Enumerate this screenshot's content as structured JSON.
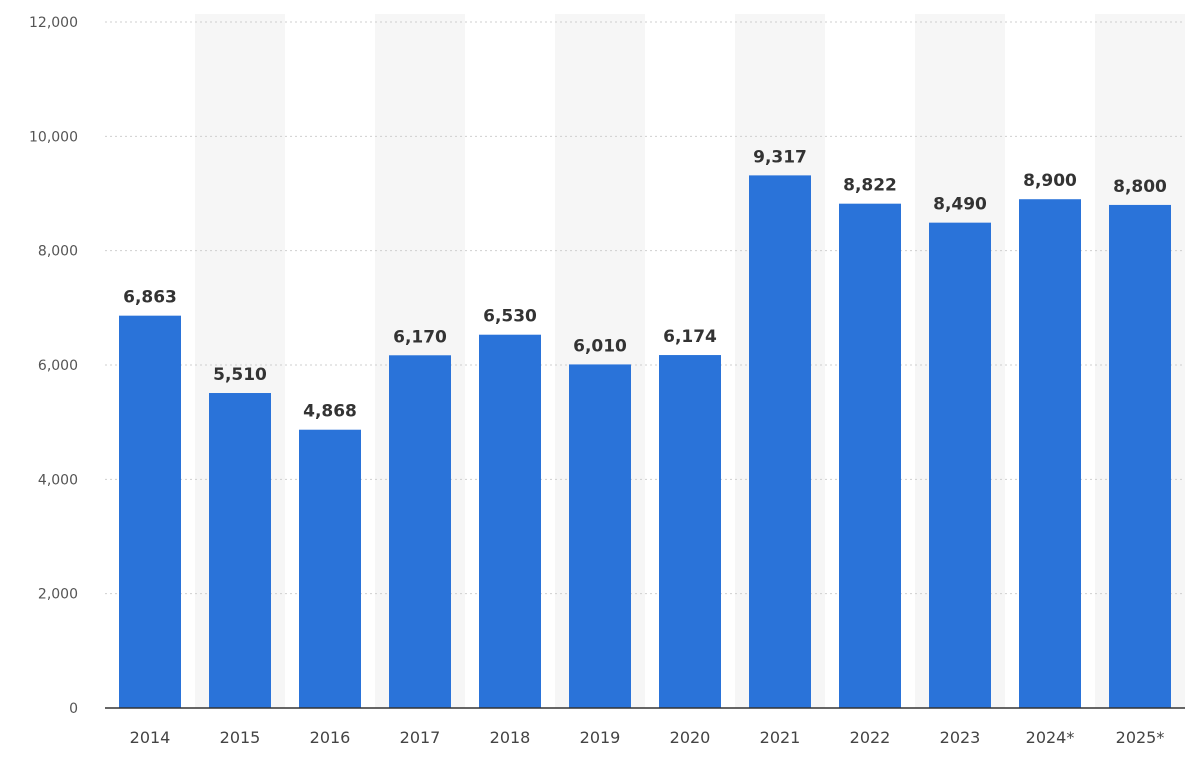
{
  "chart_data": {
    "type": "bar",
    "title": "",
    "xlabel": "",
    "ylabel": "",
    "categories": [
      "2014",
      "2015",
      "2016",
      "2017",
      "2018",
      "2019",
      "2020",
      "2021",
      "2022",
      "2023",
      "2024*",
      "2025*"
    ],
    "values": [
      6863,
      5510,
      4868,
      6170,
      6530,
      6010,
      6174,
      9317,
      8822,
      8490,
      8900,
      8800
    ],
    "data_labels": [
      "6,863",
      "5,510",
      "4,868",
      "6,170",
      "6,530",
      "6,010",
      "6,174",
      "9,317",
      "8,822",
      "8,490",
      "8,900",
      "8,800"
    ],
    "y_ticks": [
      0,
      2000,
      4000,
      6000,
      8000,
      10000,
      12000
    ],
    "y_tick_labels": [
      "0",
      "2,000",
      "4,000",
      "6,000",
      "8,000",
      "10,000",
      "12,000"
    ],
    "ylim": [
      0,
      12000
    ],
    "grid": true,
    "legend": "none",
    "colors": {
      "bar": "#2a73d9",
      "band": "#f6f6f6",
      "axis": "#333333",
      "grid": "#cfcfcf"
    }
  }
}
